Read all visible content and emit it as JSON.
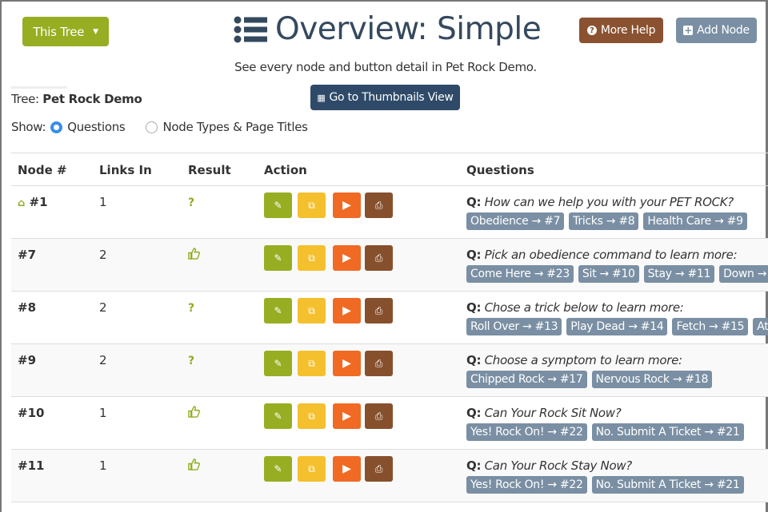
{
  "header": {
    "tree_menu": "This Tree",
    "title": "Overview: Simple",
    "subtitle": "See every node and button detail in Pet Rock Demo.",
    "more_help": "More Help",
    "add_node": "Add Node",
    "thumbnails": "Go to Thumbnails View"
  },
  "tree": {
    "label": "Tree:",
    "name": "Pet Rock Demo"
  },
  "show": {
    "label": "Show:",
    "options": [
      "Questions",
      "Node Types & Page Titles"
    ],
    "selected": "Questions"
  },
  "columns": [
    "Node #",
    "Links In",
    "Result",
    "Action",
    "Questions"
  ],
  "colors": {
    "edit": "#97ae22",
    "copy": "#f5c02e",
    "play": "#f06a24",
    "print": "#87502d",
    "tag": "#7a8fa3"
  },
  "q_prefix": "Q:",
  "rows": [
    {
      "node": "#1",
      "home": true,
      "links": "1",
      "result": "question-icon",
      "question": "How can we help you with your PET ROCK?",
      "tags": [
        "Obedience → #7",
        "Tricks → #8",
        "Health Care → #9"
      ]
    },
    {
      "node": "#7",
      "links": "2",
      "result": "thumbs-up-icon",
      "question": "Pick an obedience command to learn more:",
      "tags": [
        "Come Here → #23",
        "Sit → #10",
        "Stay → #11",
        "Down →"
      ]
    },
    {
      "node": "#8",
      "links": "2",
      "result": "question-icon",
      "question": "Chose a trick below to learn more:",
      "tags": [
        "Roll Over → #13",
        "Play Dead → #14",
        "Fetch → #15",
        "At"
      ]
    },
    {
      "node": "#9",
      "links": "2",
      "result": "question-icon",
      "question": "Choose a symptom to learn more:",
      "tags": [
        "Chipped Rock → #17",
        "Nervous Rock → #18"
      ]
    },
    {
      "node": "#10",
      "links": "1",
      "result": "thumbs-up-icon",
      "question": "Can Your Rock Sit Now?",
      "tags": [
        "Yes! Rock On! → #22",
        "No. Submit A Ticket → #21"
      ]
    },
    {
      "node": "#11",
      "links": "1",
      "result": "thumbs-up-icon",
      "question": "Can Your Rock Stay Now?",
      "tags": [
        "Yes! Rock On! → #22",
        "No. Submit A Ticket → #21"
      ]
    }
  ]
}
